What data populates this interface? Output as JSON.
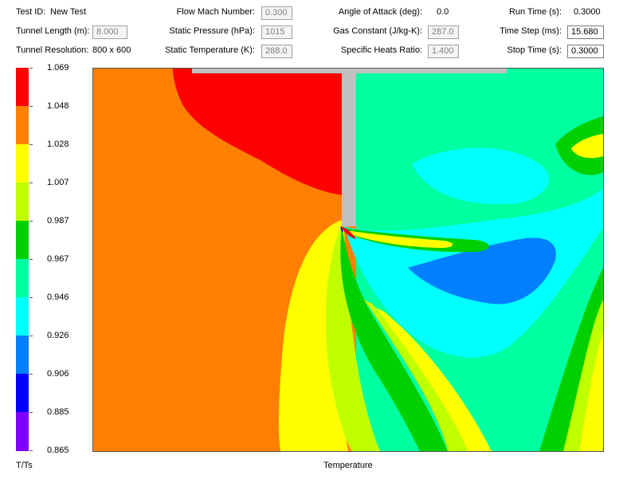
{
  "header": {
    "test_id_label": "Test ID:",
    "test_id_value": "New Test",
    "tunnel_length_label": "Tunnel Length (m):",
    "tunnel_length_value": "8.000",
    "tunnel_resolution_label": "Tunnel Resolution:",
    "tunnel_resolution_value": "800 x 600",
    "flow_mach_label": "Flow Mach Number:",
    "flow_mach_value": "0.300",
    "static_pressure_label": "Static Pressure (hPa):",
    "static_pressure_value": "1015",
    "static_temperature_label": "Static Temperature (K):",
    "static_temperature_value": "288.0",
    "angle_of_attack_label": "Angle of Attack (deg):",
    "angle_of_attack_value": "0.0",
    "gas_constant_label": "Gas Constant (J/kg-K):",
    "gas_constant_value": "287.0",
    "specific_heats_label": "Specific Heats Ratio:",
    "specific_heats_value": "1.400",
    "run_time_label": "Run Time (s):",
    "run_time_value": "0.3000",
    "time_step_label": "Time Step (ms):",
    "time_step_value": "15.680",
    "stop_time_label": "Stop Time (s):",
    "stop_time_value": "0.3000"
  },
  "legend": {
    "unit_label": "T/Ts",
    "ticks": [
      "1.069",
      "1.048",
      "1.028",
      "1.007",
      "0.987",
      "0.967",
      "0.946",
      "0.926",
      "0.906",
      "0.885",
      "0.865"
    ],
    "colors": [
      "#ff0000",
      "#ff8000",
      "#ffff00",
      "#c0ff00",
      "#00d000",
      "#00ffa0",
      "#00ffff",
      "#0080ff",
      "#0000ff",
      "#8000ff"
    ]
  },
  "plot": {
    "title": "Temperature"
  }
}
